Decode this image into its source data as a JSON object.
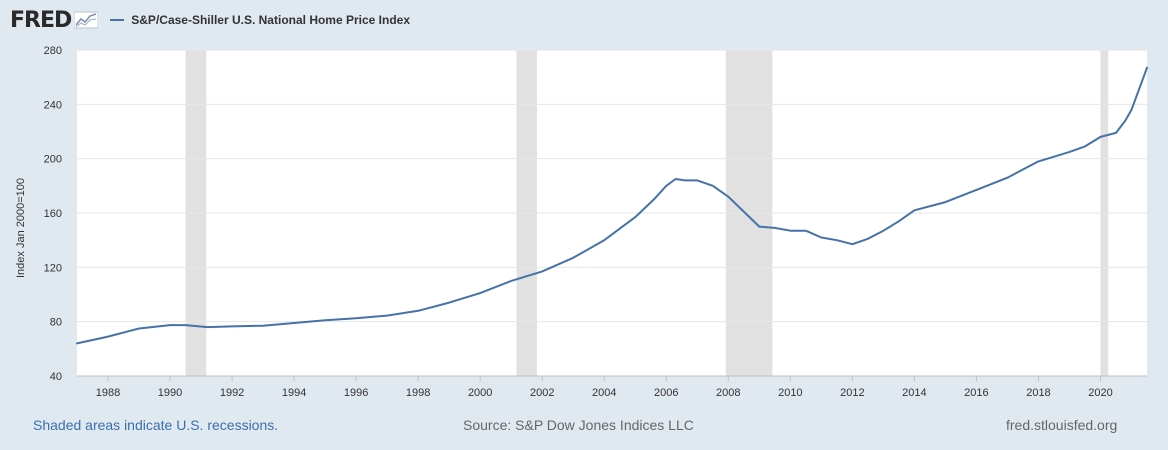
{
  "header": {
    "logo_text": "FRED",
    "legend_label": "S&P/Case-Shiller U.S. National Home Price Index"
  },
  "footer": {
    "recession_note": "Shaded areas indicate U.S. recessions.",
    "source": "Source: S&P Dow Jones Indices LLC",
    "site": "fred.stlouisfed.org"
  },
  "colors": {
    "series": "#4572a7",
    "recession": "#e1e1e1",
    "page_bg": "#e1e9f0",
    "plot_bg": "#ffffff"
  },
  "icons": [
    "fred-logo-graph-icon"
  ],
  "chart_data": {
    "type": "line",
    "title": "",
    "xlabel": "",
    "ylabel": "Index Jan 2000=100",
    "ylim": [
      40,
      280
    ],
    "xlim": [
      1987.0,
      2021.5
    ],
    "y_ticks": [
      40,
      80,
      120,
      160,
      200,
      240,
      280
    ],
    "x_ticks": [
      1988,
      1990,
      1992,
      1994,
      1996,
      1998,
      2000,
      2002,
      2004,
      2006,
      2008,
      2010,
      2012,
      2014,
      2016,
      2018,
      2020
    ],
    "grid": "horizontal",
    "legend": "top-left",
    "recessions": [
      [
        1990.5,
        1991.17
      ],
      [
        2001.17,
        2001.83
      ],
      [
        2007.92,
        2009.42
      ],
      [
        2020.0,
        2020.25
      ]
    ],
    "series": [
      {
        "name": "S&P/Case-Shiller U.S. National Home Price Index",
        "x": [
          1987.0,
          1988.0,
          1989.0,
          1990.0,
          1990.5,
          1991.2,
          1992.0,
          1993.0,
          1994.0,
          1995.0,
          1996.0,
          1997.0,
          1998.0,
          1999.0,
          2000.0,
          2001.0,
          2002.0,
          2003.0,
          2004.0,
          2005.0,
          2005.6,
          2006.0,
          2006.3,
          2006.6,
          2007.0,
          2007.5,
          2008.0,
          2008.5,
          2009.0,
          2009.5,
          2010.0,
          2010.5,
          2011.0,
          2011.5,
          2012.0,
          2012.5,
          2013.0,
          2013.5,
          2014.0,
          2015.0,
          2016.0,
          2017.0,
          2018.0,
          2019.0,
          2019.5,
          2020.0,
          2020.5,
          2020.8,
          2021.0,
          2021.5
        ],
        "values": [
          64,
          69,
          75,
          77.5,
          77.5,
          76,
          76.5,
          77,
          79,
          81,
          82.5,
          84.5,
          88,
          94,
          101,
          110,
          117,
          127,
          140,
          157,
          170,
          180,
          185,
          184,
          184,
          180,
          172,
          161,
          150,
          149,
          147,
          147,
          142,
          140,
          137,
          141,
          147,
          154,
          162,
          168,
          177,
          186,
          198,
          205,
          209,
          216,
          219,
          228,
          236,
          267
        ]
      }
    ]
  }
}
